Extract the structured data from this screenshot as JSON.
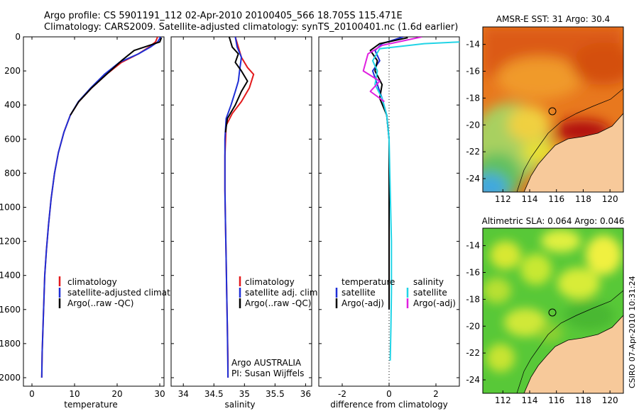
{
  "page": {
    "title_line1": "Argo profile: CS 5901191_112 02-Apr-2010 20100405_566 18.705S 115.471E",
    "title_line2": "Climatology: CARS2009. Satellite-adjusted climatology: synTS_20100401.nc (1.6d earlier)",
    "credit": "CSIRO 07-Apr-2010 10:31:24"
  },
  "colors": {
    "climatology": "#e31a1c",
    "satellite": "#1f2fd6",
    "argo": "#000000",
    "satellite_salinity_diff": "#21d4e6",
    "argo_salinity_diff": "#e020e0",
    "land": "#f7c99a"
  },
  "chart_data": [
    {
      "id": "temperature",
      "type": "line",
      "xlabel": "temperature",
      "ylabel": "",
      "xlim": [
        -2,
        31
      ],
      "ylim": [
        2050,
        0
      ],
      "xticks": [
        0,
        10,
        20,
        30
      ],
      "yticks": [
        0,
        200,
        400,
        600,
        800,
        1000,
        1200,
        1400,
        1600,
        1800,
        2000
      ],
      "legend": [
        "climatology",
        "satellite-adjusted climatology",
        "Argo(..raw -QC)"
      ],
      "legend_position": "lower-left",
      "series": [
        {
          "name": "climatology",
          "color": "#e31a1c",
          "x": [
            29.5,
            29.0,
            27.5,
            25.0,
            21.0,
            17.5,
            14.0,
            11.0,
            9.0,
            7.5,
            6.2,
            5.3,
            4.5,
            3.9,
            3.4,
            3.0,
            2.8,
            2.6,
            2.4,
            2.3
          ],
          "y": [
            0,
            30,
            60,
            100,
            150,
            220,
            300,
            380,
            460,
            560,
            680,
            800,
            950,
            1100,
            1250,
            1400,
            1550,
            1700,
            1850,
            2000
          ]
        },
        {
          "name": "satellite-adjusted climatology",
          "color": "#1f2fd6",
          "x": [
            30.2,
            29.5,
            27.8,
            25.0,
            20.5,
            17.0,
            13.8,
            10.9,
            9.0,
            7.5,
            6.2,
            5.3,
            4.5,
            3.9,
            3.4,
            3.0,
            2.8,
            2.6,
            2.4,
            2.3
          ],
          "y": [
            0,
            30,
            60,
            100,
            150,
            220,
            300,
            380,
            460,
            560,
            680,
            800,
            950,
            1100,
            1250,
            1400,
            1550,
            1700,
            1850,
            2000
          ]
        },
        {
          "name": "Argo(..raw -QC)",
          "color": "#000000",
          "x": [
            30.4,
            30.0,
            27.0,
            24.0,
            21.0,
            17.5,
            14.0,
            11.0,
            9.0
          ],
          "y": [
            5,
            30,
            55,
            80,
            140,
            220,
            300,
            380,
            460
          ]
        }
      ],
      "labels": []
    },
    {
      "id": "salinity",
      "type": "line",
      "xlabel": "salinity",
      "ylabel": "",
      "xlim": [
        33.8,
        36.1
      ],
      "ylim": [
        2050,
        0
      ],
      "xticks": [
        34,
        34.5,
        35,
        35.5,
        36
      ],
      "yticks": [
        0,
        200,
        400,
        600,
        800,
        1000,
        1200,
        1400,
        1600,
        1800,
        2000
      ],
      "legend": [
        "climatology",
        "satellite adj. clim.",
        "Argo(..raw -QC)"
      ],
      "legend_position": "lower-right",
      "series": [
        {
          "name": "climatology",
          "color": "#e31a1c",
          "x": [
            34.85,
            34.9,
            34.95,
            35.05,
            35.15,
            35.08,
            34.95,
            34.8,
            34.7,
            34.68,
            34.68,
            34.69,
            34.7,
            34.71,
            34.72,
            34.73,
            34.73
          ],
          "y": [
            0,
            60,
            120,
            180,
            220,
            300,
            380,
            450,
            520,
            700,
            900,
            1100,
            1300,
            1500,
            1700,
            1900,
            2000
          ]
        },
        {
          "name": "satellite adj. clim.",
          "color": "#1f2fd6",
          "x": [
            34.85,
            34.88,
            34.95,
            34.92,
            34.9,
            34.85,
            34.78,
            34.7,
            34.68,
            34.68,
            34.69,
            34.7,
            34.71,
            34.72,
            34.73
          ],
          "y": [
            0,
            60,
            120,
            200,
            260,
            320,
            400,
            480,
            600,
            900,
            1100,
            1300,
            1500,
            1700,
            2000
          ]
        },
        {
          "name": "Argo(..raw -QC)",
          "color": "#000000",
          "x": [
            34.75,
            34.8,
            34.9,
            34.85,
            34.95,
            35.05,
            34.95,
            34.85,
            34.72,
            34.69
          ],
          "y": [
            0,
            60,
            100,
            150,
            200,
            260,
            320,
            400,
            480,
            560
          ]
        }
      ],
      "labels": [
        "Argo AUSTRALIA",
        "PI: Susan Wijffels"
      ]
    },
    {
      "id": "difference",
      "type": "line",
      "xlabel": "difference from climatology",
      "ylabel": "",
      "xlim": [
        -3,
        3
      ],
      "ylim": [
        2050,
        0
      ],
      "xticks": [
        -2,
        0,
        2
      ],
      "yticks": [
        0,
        200,
        400,
        600,
        800,
        1000,
        1200,
        1400,
        1600,
        1800,
        2000
      ],
      "legend": [
        "temperature",
        "satellite",
        "Argo(-adj)",
        "salinity",
        "satellite",
        "Argo(-adj)"
      ],
      "legend_position": "lower-center",
      "series": [
        {
          "name": "temperature satellite",
          "color": "#1f2fd6",
          "x": [
            0.6,
            -0.3,
            -0.6,
            -0.4,
            -0.7,
            -0.5,
            -0.3,
            -0.1,
            0,
            0,
            0,
            0
          ],
          "y": [
            0,
            40,
            80,
            140,
            200,
            280,
            360,
            460,
            600,
            900,
            1300,
            1600
          ]
        },
        {
          "name": "temperature Argo(-adj)",
          "color": "#000000",
          "x": [
            0.8,
            -0.4,
            -0.8,
            -0.5,
            -0.6,
            -0.3,
            -0.4,
            -0.1,
            0,
            0,
            0,
            0
          ],
          "y": [
            5,
            40,
            80,
            140,
            200,
            280,
            360,
            460,
            600,
            900,
            1300,
            1600
          ]
        },
        {
          "name": "salinity satellite",
          "color": "#21d4e6",
          "x": [
            3,
            1.5,
            -0.4,
            -0.7,
            -0.5,
            -0.6,
            -0.3,
            -0.1,
            0,
            0.05,
            0.1,
            0.1,
            0.08,
            0.05
          ],
          "y": [
            30,
            40,
            70,
            140,
            200,
            280,
            360,
            460,
            600,
            900,
            1200,
            1500,
            1700,
            1900
          ]
        },
        {
          "name": "salinity Argo(-adj)",
          "color": "#e020e0",
          "x": [
            1.4,
            -0.3,
            -0.9,
            -1.1,
            -0.4,
            -0.8,
            -0.2
          ],
          "y": [
            0,
            50,
            100,
            200,
            260,
            320,
            380
          ]
        }
      ],
      "labels": []
    }
  ],
  "maps": [
    {
      "id": "sst",
      "title": "AMSR-E SST: 31 Argo: 30.4",
      "xticks": [
        112,
        114,
        116,
        118,
        120
      ],
      "yticks": [
        -14,
        -16,
        -18,
        -20,
        -22,
        -24
      ],
      "xlim": [
        110.5,
        121
      ],
      "ylim": [
        -25,
        -12.7
      ],
      "argo_position": {
        "lon": 115.471,
        "lat": -18.705
      }
    },
    {
      "id": "sla",
      "title": "Altimetric SLA: 0.064 Argo: 0.046",
      "xticks": [
        112,
        114,
        116,
        118,
        120
      ],
      "yticks": [
        -14,
        -16,
        -18,
        -20,
        -22,
        -24
      ],
      "xlim": [
        110.5,
        121
      ],
      "ylim": [
        -25,
        -12.7
      ],
      "argo_position": {
        "lon": 115.471,
        "lat": -18.705
      }
    }
  ]
}
